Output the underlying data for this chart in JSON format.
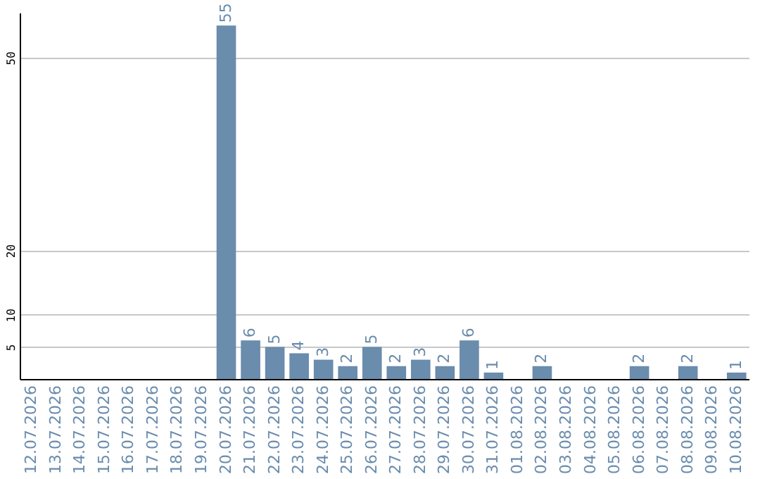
{
  "chart_data": {
    "type": "bar",
    "categories": [
      "12.07.2026",
      "13.07.2026",
      "14.07.2026",
      "15.07.2026",
      "16.07.2026",
      "17.07.2026",
      "18.07.2026",
      "19.07.2026",
      "20.07.2026",
      "21.07.2026",
      "22.07.2026",
      "23.07.2026",
      "24.07.2026",
      "25.07.2026",
      "26.07.2026",
      "27.07.2026",
      "28.07.2026",
      "29.07.2026",
      "30.07.2026",
      "31.07.2026",
      "01.08.2026",
      "02.08.2026",
      "03.08.2026",
      "04.08.2026",
      "05.08.2026",
      "06.08.2026",
      "07.08.2026",
      "08.08.2026",
      "09.08.2026",
      "10.08.2026"
    ],
    "values": [
      null,
      null,
      null,
      null,
      null,
      null,
      null,
      null,
      55,
      6,
      5,
      4,
      3,
      2,
      5,
      2,
      3,
      2,
      6,
      1,
      null,
      2,
      null,
      null,
      null,
      2,
      null,
      2,
      null,
      1
    ],
    "color": "#6a8cad",
    "ylim": [
      0,
      57
    ],
    "yticks": [
      5,
      10,
      20,
      50
    ],
    "grid": "y",
    "data_labels": true
  }
}
